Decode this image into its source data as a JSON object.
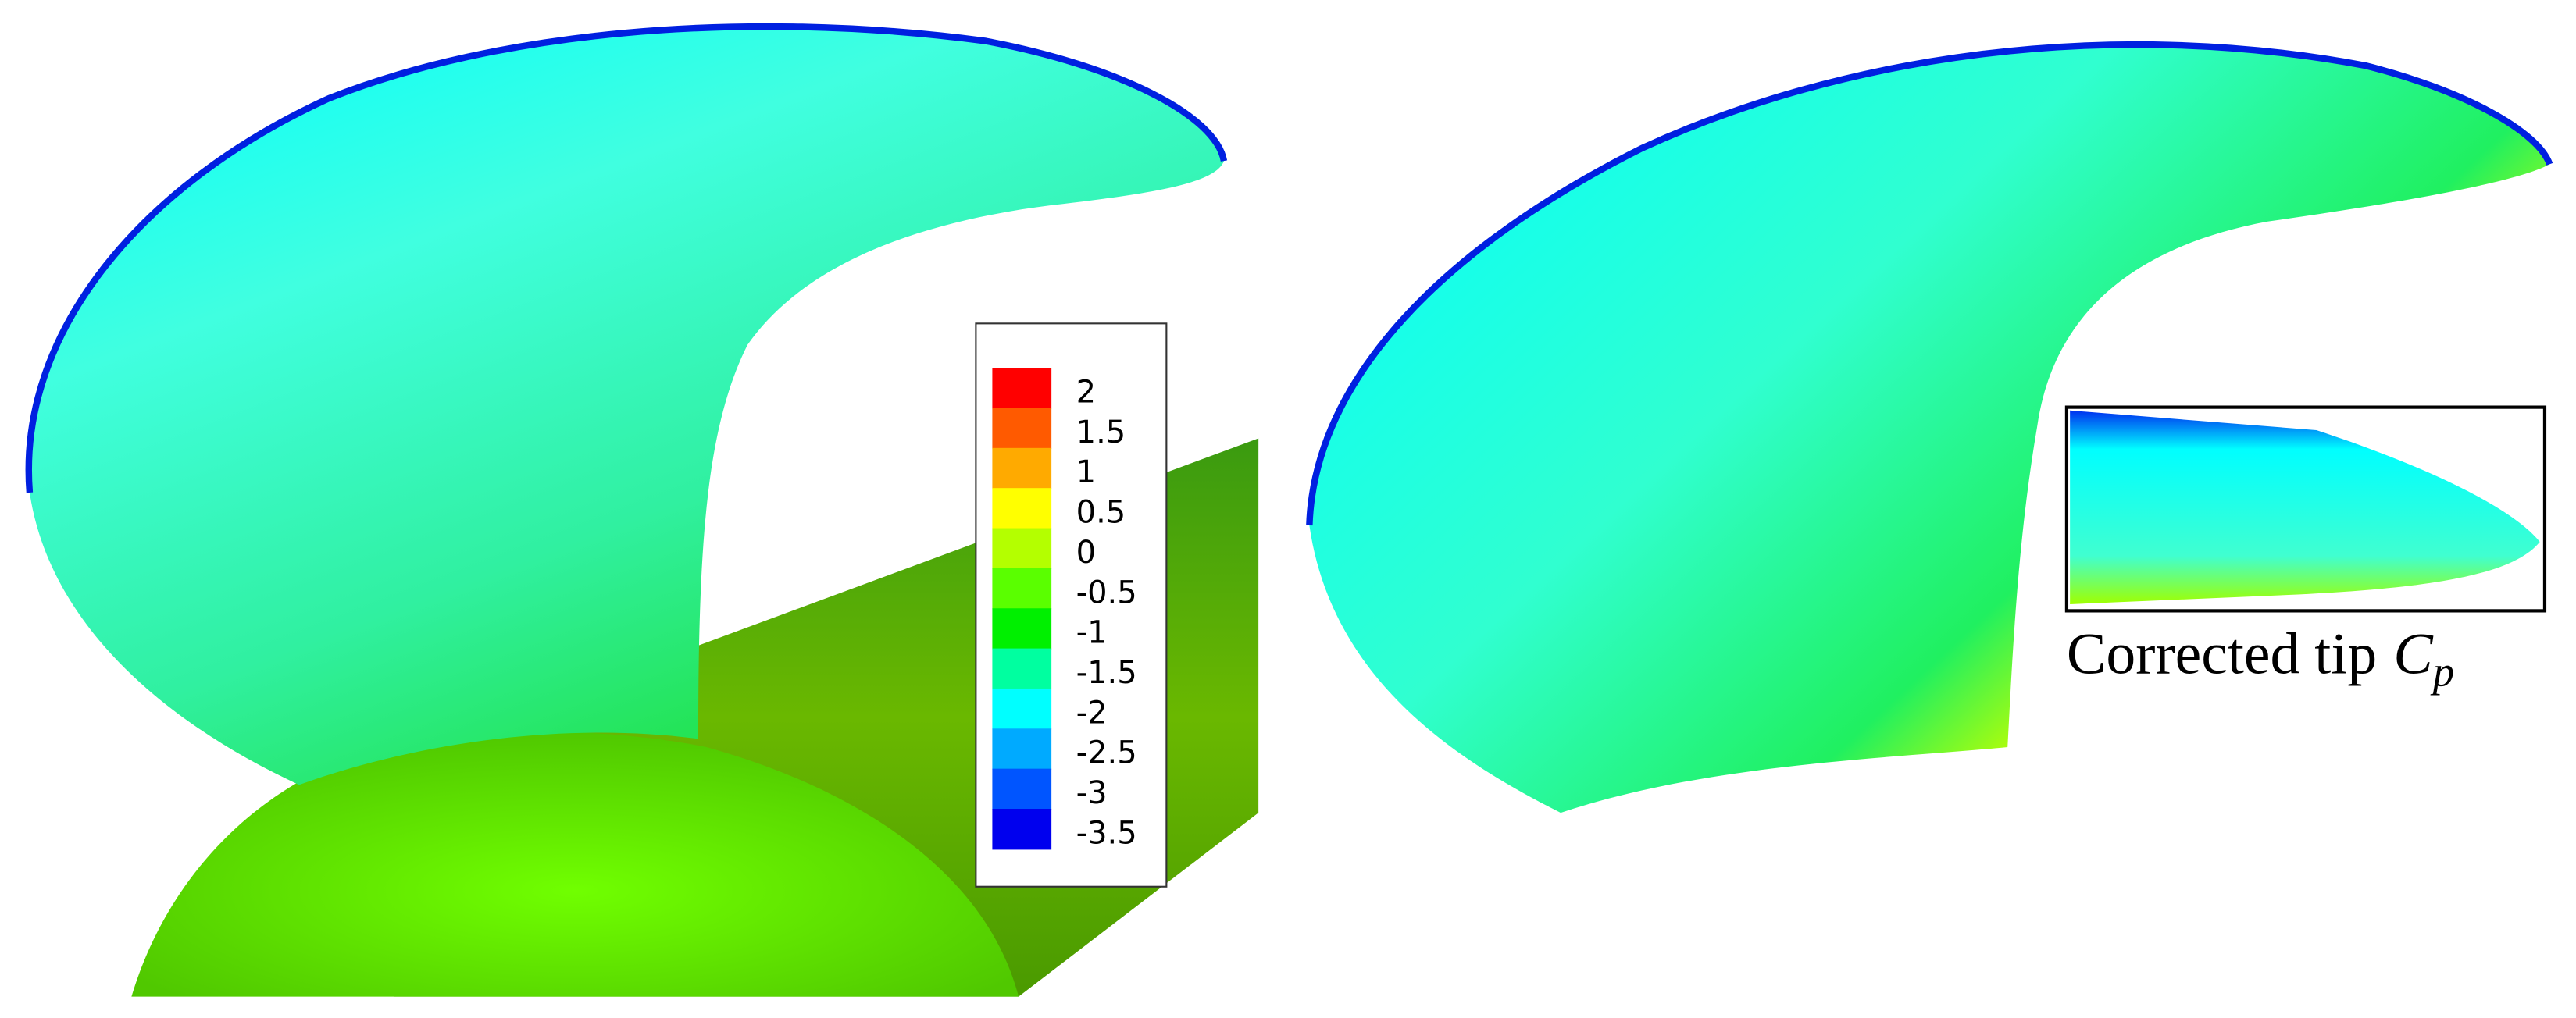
{
  "legend": {
    "entries": [
      {
        "label": "2",
        "color": "#ff0000"
      },
      {
        "label": "1.5",
        "color": "#ff5a00"
      },
      {
        "label": "1",
        "color": "#ffaa00"
      },
      {
        "label": "0.5",
        "color": "#ffff00"
      },
      {
        "label": "0",
        "color": "#b4ff00"
      },
      {
        "label": "-0.5",
        "color": "#5aff00"
      },
      {
        "label": "-1",
        "color": "#00f000"
      },
      {
        "label": "-1.5",
        "color": "#00ffa0"
      },
      {
        "label": "-2",
        "color": "#00ffff"
      },
      {
        "label": "-2.5",
        "color": "#00aaff"
      },
      {
        "label": "-3",
        "color": "#0055ff"
      },
      {
        "label": "-3.5",
        "color": "#0000ee"
      }
    ]
  },
  "inset": {
    "caption": "Corrected tip",
    "symbol": "C",
    "subscript": "p"
  }
}
